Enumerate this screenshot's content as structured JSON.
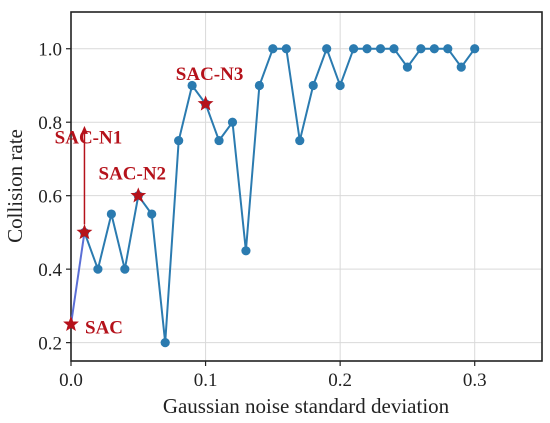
{
  "chart_data": {
    "type": "line",
    "title": "",
    "xlabel": "Gaussian noise standard deviation",
    "ylabel": "Collision rate",
    "xlim": [
      0.0,
      0.35
    ],
    "ylim": [
      0.15,
      1.1
    ],
    "xticks": [
      0.0,
      0.1,
      0.2,
      0.3
    ],
    "yticks": [
      0.2,
      0.4,
      0.6,
      0.8,
      1.0
    ],
    "xtick_labels": [
      "0.0",
      "0.1",
      "0.2",
      "0.3"
    ],
    "ytick_labels": [
      "0.2",
      "0.4",
      "0.6",
      "0.8",
      "1.0"
    ],
    "grid": true,
    "series": [
      {
        "x": [
          0.01,
          0.02,
          0.03,
          0.04,
          0.05,
          0.06,
          0.07,
          0.08,
          0.09,
          0.1,
          0.11,
          0.12,
          0.13,
          0.14,
          0.15,
          0.16,
          0.17,
          0.18,
          0.19,
          0.2,
          0.21,
          0.22,
          0.23,
          0.24,
          0.25,
          0.26,
          0.27,
          0.28,
          0.29,
          0.3
        ],
        "values": [
          0.5,
          0.4,
          0.55,
          0.4,
          0.6,
          0.55,
          0.2,
          0.75,
          0.9,
          0.85,
          0.75,
          0.8,
          0.45,
          0.9,
          1.0,
          1.0,
          0.75,
          0.9,
          1.0,
          0.9,
          1.0,
          1.0,
          1.0,
          1.0,
          0.95,
          1.0,
          1.0,
          1.0,
          0.95,
          1.0
        ],
        "color": "#2b7bb0"
      }
    ],
    "connector": {
      "from": [
        0.0,
        0.25
      ],
      "to": [
        0.01,
        0.5
      ],
      "color": "#5b6fd6"
    },
    "annotations": [
      {
        "text": "SAC",
        "x": 0.0,
        "y": 0.25,
        "marker": "star",
        "color": "#b5121b"
      },
      {
        "text": "SAC-N1",
        "x": 0.01,
        "y": 0.5,
        "marker": "star",
        "color": "#b5121b"
      },
      {
        "text": "SAC-N2",
        "x": 0.05,
        "y": 0.6,
        "marker": "star",
        "color": "#b5121b"
      },
      {
        "text": "SAC-N3",
        "x": 0.1,
        "y": 0.85,
        "marker": "star",
        "color": "#b5121b"
      }
    ],
    "arrow": {
      "from": [
        0.01,
        0.5
      ],
      "to": [
        0.01,
        0.79
      ],
      "color": "#b5121b"
    }
  }
}
